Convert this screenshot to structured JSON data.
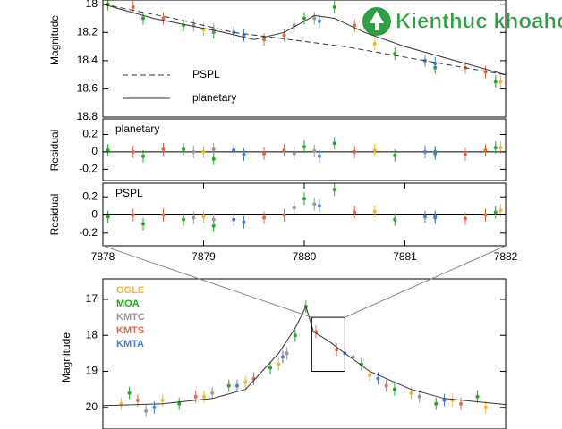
{
  "watermark": "Kienthuc khoahoc .org",
  "chart_data": [
    {
      "type": "scatter",
      "y_label": "Magnitude",
      "xlim": [
        7878,
        7882
      ],
      "ylim": [
        18.8,
        17.97
      ],
      "yticks": [
        18,
        18.2,
        18.4,
        18.6,
        18.8
      ],
      "series": [
        {
          "color": "#22aa22",
          "x": [
            7878.05,
            7878.4,
            7878.8,
            7879.1,
            7880.0,
            7880.3,
            7880.9,
            7881.3,
            7881.9
          ],
          "values": [
            18.0,
            18.1,
            18.15,
            18.2,
            18.1,
            18.02,
            18.35,
            18.45,
            18.55
          ]
        },
        {
          "color": "#e8684a",
          "x": [
            7878.3,
            7878.6,
            7879.6,
            7879.8,
            7880.5,
            7881.6,
            7881.8
          ],
          "values": [
            18.02,
            18.1,
            18.25,
            18.22,
            18.15,
            18.45,
            18.48
          ]
        },
        {
          "color": "#999999",
          "x": [
            7878.9,
            7879.1,
            7879.9,
            7880.1
          ],
          "values": [
            18.15,
            18.18,
            18.15,
            18.1
          ]
        },
        {
          "color": "#4a7bd8",
          "x": [
            7879.3,
            7879.4,
            7880.15,
            7881.2,
            7881.3
          ],
          "values": [
            18.2,
            18.22,
            18.12,
            18.4,
            18.42
          ]
        },
        {
          "color": "#f2b632",
          "x": [
            7879.0,
            7880.7,
            7881.95
          ],
          "values": [
            18.18,
            18.28,
            18.55
          ]
        }
      ],
      "models": [
        {
          "name": "PSPL",
          "dashed": true,
          "x": [
            7878,
            7878.7,
            7879.3,
            7880.4,
            7881.2,
            7882
          ],
          "values": [
            18.0,
            18.1,
            18.2,
            18.3,
            18.4,
            18.5
          ]
        },
        {
          "name": "planetary",
          "dashed": false,
          "x": [
            7878,
            7878.5,
            7879.2,
            7879.5,
            7879.8,
            7880.1,
            7880.3,
            7880.6,
            7881,
            7881.5,
            7882
          ],
          "values": [
            18.0,
            18.1,
            18.2,
            18.25,
            18.2,
            18.08,
            18.1,
            18.2,
            18.3,
            18.4,
            18.5
          ]
        }
      ]
    },
    {
      "type": "scatter",
      "y_label": "Residual",
      "label": "planetary",
      "xlim": [
        7878,
        7882
      ],
      "ylim": [
        -0.33,
        0.38
      ],
      "yticks": [
        -0.2,
        0,
        0.2
      ],
      "reference_line": 0,
      "series": [
        {
          "color": "#22aa22",
          "x": [
            7878.05,
            7878.4,
            7878.8,
            7879.1,
            7880.0,
            7880.3,
            7880.9,
            7881.3,
            7881.9
          ],
          "values": [
            0.02,
            -0.05,
            0.03,
            -0.08,
            0.06,
            0.1,
            -0.04,
            0.0,
            0.05
          ]
        },
        {
          "color": "#e8684a",
          "x": [
            7878.3,
            7878.6,
            7879.6,
            7879.8,
            7880.5,
            7881.6,
            7881.8
          ],
          "values": [
            0.0,
            0.03,
            -0.02,
            0.02,
            0.0,
            -0.03,
            0.02
          ]
        },
        {
          "color": "#999999",
          "x": [
            7878.9,
            7879.1,
            7879.9,
            7880.1
          ],
          "values": [
            0.0,
            0.03,
            -0.02,
            0.01
          ]
        },
        {
          "color": "#4a7bd8",
          "x": [
            7879.3,
            7879.4,
            7880.15,
            7881.2,
            7881.3
          ],
          "values": [
            0.02,
            -0.03,
            -0.05,
            0.0,
            -0.02
          ]
        },
        {
          "color": "#f2b632",
          "x": [
            7879.0,
            7880.7,
            7881.95
          ],
          "values": [
            0.0,
            0.02,
            0.05
          ]
        }
      ]
    },
    {
      "type": "scatter",
      "y_label": "Residual",
      "label": "PSPL",
      "xlim": [
        7878,
        7882
      ],
      "ylim": [
        -0.34,
        0.35
      ],
      "yticks": [
        -0.2,
        0,
        0.2
      ],
      "xticks": [
        7878,
        7879,
        7880,
        7881,
        7882
      ],
      "reference_line": 0,
      "series": [
        {
          "color": "#22aa22",
          "x": [
            7878.05,
            7878.4,
            7878.8,
            7879.1,
            7880.0,
            7880.3,
            7880.9,
            7881.3,
            7881.9
          ],
          "values": [
            -0.02,
            -0.1,
            -0.05,
            -0.12,
            0.18,
            0.28,
            -0.05,
            -0.02,
            0.03
          ]
        },
        {
          "color": "#e8684a",
          "x": [
            7878.3,
            7878.6,
            7879.6,
            7879.8,
            7880.5,
            7881.6,
            7881.8
          ],
          "values": [
            0.0,
            0.0,
            -0.03,
            0.0,
            0.03,
            -0.04,
            0.0
          ]
        },
        {
          "color": "#999999",
          "x": [
            7878.9,
            7879.1,
            7879.9,
            7880.1
          ],
          "values": [
            -0.03,
            -0.05,
            0.08,
            0.12
          ]
        },
        {
          "color": "#4a7bd8",
          "x": [
            7879.3,
            7879.4,
            7880.15,
            7881.2,
            7881.3
          ],
          "values": [
            -0.05,
            -0.08,
            0.1,
            -0.02,
            -0.03
          ]
        },
        {
          "color": "#f2b632",
          "x": [
            7879.0,
            7880.7,
            7881.95
          ],
          "values": [
            -0.02,
            0.04,
            0.05
          ]
        }
      ]
    },
    {
      "type": "scatter",
      "y_label": "Magnitude",
      "xlim": [
        7852.8,
        7901.4
      ],
      "ylim": [
        20.6,
        16.43
      ],
      "yticks": [
        17,
        18,
        19,
        20
      ],
      "zoom": {
        "xlim": [
          7878,
          7882
        ],
        "ylim": [
          17.5,
          19
        ]
      },
      "series": [
        {
          "name": "OGLE",
          "color": "#f2b632",
          "x": [
            7855,
            7860,
            7865,
            7870,
            7874,
            7885,
            7890,
            7895,
            7899
          ],
          "values": [
            19.9,
            19.8,
            19.7,
            19.3,
            18.8,
            19.1,
            19.6,
            19.8,
            20.0
          ]
        },
        {
          "name": "MOA",
          "color": "#22aa22",
          "x": [
            7856,
            7862,
            7868,
            7873,
            7876,
            7877.3,
            7884,
            7888,
            7893,
            7898
          ],
          "values": [
            19.6,
            19.9,
            19.4,
            18.9,
            18.0,
            17.2,
            18.8,
            19.5,
            19.9,
            19.7
          ]
        },
        {
          "name": "KMTC",
          "color": "#999999",
          "x": [
            7858,
            7866,
            7875,
            7883,
            7891
          ],
          "values": [
            20.1,
            19.6,
            18.5,
            18.6,
            19.7
          ]
        },
        {
          "name": "KMTS",
          "color": "#e8684a",
          "x": [
            7857,
            7864,
            7871,
            7878.5,
            7881,
            7887,
            7896
          ],
          "values": [
            19.8,
            19.7,
            19.2,
            17.9,
            18.4,
            19.4,
            19.9
          ]
        },
        {
          "name": "KMTA",
          "color": "#4a7bd8",
          "x": [
            7859,
            7869,
            7874.5,
            7882,
            7886,
            7894
          ],
          "values": [
            20.0,
            19.4,
            18.6,
            18.5,
            19.2,
            19.8
          ]
        }
      ],
      "models": [
        {
          "dashed": false,
          "x": [
            7852.8,
            7860,
            7866,
            7870,
            7874,
            7876,
            7877.3,
            7878.2,
            7880,
            7882,
            7885,
            7890,
            7894,
            7901.4
          ],
          "values": [
            19.95,
            19.9,
            19.75,
            19.5,
            18.5,
            17.8,
            17.2,
            17.9,
            18.15,
            18.5,
            19.0,
            19.5,
            19.75,
            19.92
          ]
        }
      ]
    }
  ]
}
